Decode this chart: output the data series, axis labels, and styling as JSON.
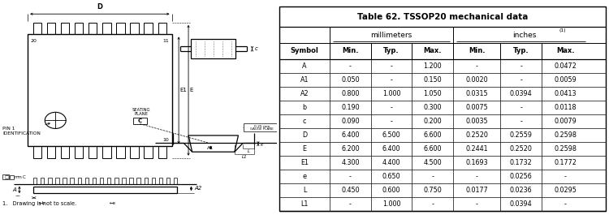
{
  "title": "Table 62. TSSOP20 mechanical data",
  "rows": [
    [
      "A",
      "-",
      "-",
      "1.200",
      "-",
      "-",
      "0.0472"
    ],
    [
      "A1",
      "0.050",
      "-",
      "0.150",
      "0.0020",
      "-",
      "0.0059"
    ],
    [
      "A2",
      "0.800",
      "1.000",
      "1.050",
      "0.0315",
      "0.0394",
      "0.0413"
    ],
    [
      "b",
      "0.190",
      "-",
      "0.300",
      "0.0075",
      "-",
      "0.0118"
    ],
    [
      "c",
      "0.090",
      "-",
      "0.200",
      "0.0035",
      "-",
      "0.0079"
    ],
    [
      "D",
      "6.400",
      "6.500",
      "6.600",
      "0.2520",
      "0.2559",
      "0.2598"
    ],
    [
      "E",
      "6.200",
      "6.400",
      "6.600",
      "0.2441",
      "0.2520",
      "0.2598"
    ],
    [
      "E1",
      "4.300",
      "4.400",
      "4.500",
      "0.1693",
      "0.1732",
      "0.1772"
    ],
    [
      "e",
      "-",
      "0.650",
      "-",
      "-",
      "0.0256",
      "-"
    ],
    [
      "L",
      "0.450",
      "0.600",
      "0.750",
      "0.0177",
      "0.0236",
      "0.0295"
    ],
    [
      "L1",
      "-",
      "1.000",
      "-",
      "-",
      "0.0394",
      "-"
    ]
  ],
  "footnote": "1.   Drawing is not to scale.",
  "bg_color": "#ffffff",
  "lc": "#000000"
}
